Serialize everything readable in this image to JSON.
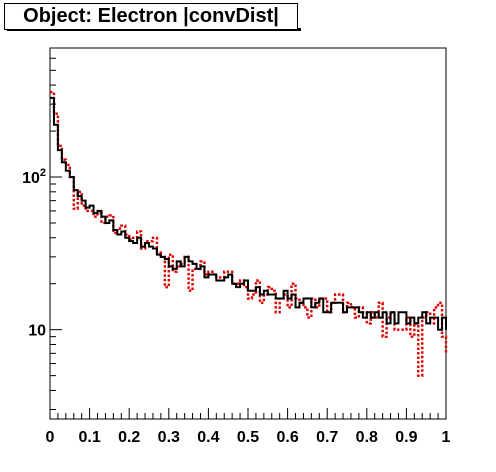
{
  "chart_data": {
    "type": "line",
    "title": "Object: Electron |convDist|",
    "xlabel": "",
    "ylabel": "",
    "xlim": [
      0,
      1
    ],
    "ylim": [
      2.6,
      700
    ],
    "log_y": true,
    "grid": false,
    "legend": "none",
    "x_ticks": [
      0,
      0.1,
      0.2,
      0.3,
      0.4,
      0.5,
      0.6,
      0.7,
      0.8,
      0.9,
      1
    ],
    "x_tick_labels": [
      "0",
      "0.1",
      "0.2",
      "0.3",
      "0.4",
      "0.5",
      "0.6",
      "0.7",
      "0.8",
      "0.9",
      "1"
    ],
    "y_ticks": [
      10,
      100
    ],
    "y_tick_labels": [
      "10",
      "10^2"
    ],
    "bin_width": 0.01,
    "series": [
      {
        "color": "#000000",
        "style": "solid",
        "values": [
          330,
          220,
          150,
          125,
          110,
          100,
          82,
          75,
          70,
          63,
          65,
          58,
          60,
          55,
          50,
          52,
          45,
          42,
          44,
          40,
          38,
          37,
          40,
          35,
          37,
          35,
          34,
          31,
          30,
          29,
          26,
          25,
          28,
          26,
          30,
          28,
          27,
          25,
          26,
          22,
          23,
          23,
          21,
          21,
          22,
          23,
          20,
          19,
          20,
          21,
          18,
          18,
          19,
          17,
          18,
          17,
          17,
          16,
          16,
          18,
          16,
          17,
          14,
          15,
          16,
          16,
          14,
          15,
          16,
          13,
          13,
          15,
          15,
          15,
          13,
          14,
          14,
          14,
          13,
          12,
          13,
          12,
          13,
          12,
          13,
          11,
          13,
          11,
          13,
          13,
          11,
          12,
          11,
          12,
          13,
          11,
          12,
          12,
          10,
          12,
          10
        ]
      },
      {
        "color": "#dd0000",
        "style": "dotted",
        "values": [
          360,
          260,
          160,
          130,
          120,
          100,
          62,
          80,
          65,
          60,
          60,
          55,
          58,
          50,
          55,
          56,
          43,
          46,
          48,
          42,
          39,
          40,
          44,
          34,
          38,
          38,
          40,
          32,
          30,
          19,
          31,
          24,
          26,
          27,
          30,
          18,
          25,
          25,
          28,
          23,
          24,
          23,
          22,
          22,
          24,
          24,
          20,
          20,
          21,
          19,
          16,
          17,
          21,
          15,
          17,
          19,
          18,
          13,
          16,
          17,
          14,
          20,
          16,
          15,
          14,
          12,
          16,
          14,
          16,
          16,
          13,
          15,
          17,
          17,
          13,
          15,
          14,
          12,
          14,
          13,
          11,
          13,
          12,
          15,
          9,
          12,
          13,
          10,
          10,
          10,
          12,
          9,
          11,
          5,
          12,
          13,
          11,
          14,
          15,
          9,
          7
        ]
      }
    ]
  }
}
